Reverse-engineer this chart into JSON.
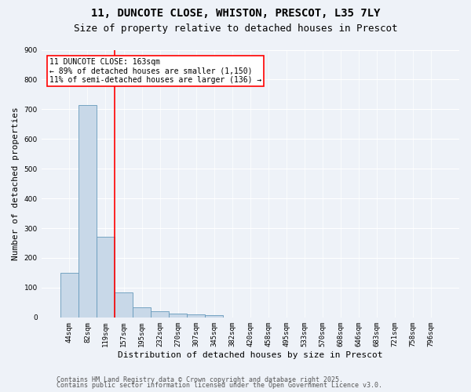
{
  "title_line1": "11, DUNCOTE CLOSE, WHISTON, PRESCOT, L35 7LY",
  "title_line2": "Size of property relative to detached houses in Prescot",
  "xlabel": "Distribution of detached houses by size in Prescot",
  "ylabel": "Number of detached properties",
  "categories": [
    "44sqm",
    "82sqm",
    "119sqm",
    "157sqm",
    "195sqm",
    "232sqm",
    "270sqm",
    "307sqm",
    "345sqm",
    "382sqm",
    "420sqm",
    "458sqm",
    "495sqm",
    "533sqm",
    "570sqm",
    "608sqm",
    "646sqm",
    "683sqm",
    "721sqm",
    "758sqm",
    "796sqm"
  ],
  "values": [
    150,
    715,
    270,
    85,
    35,
    20,
    12,
    10,
    8,
    0,
    0,
    0,
    0,
    0,
    0,
    0,
    0,
    0,
    0,
    0,
    0
  ],
  "bar_color": "#c8d8e8",
  "bar_edge_color": "#6699bb",
  "vline_color": "red",
  "vline_x": 2.5,
  "annotation_text": "11 DUNCOTE CLOSE: 163sqm\n← 89% of detached houses are smaller (1,150)\n11% of semi-detached houses are larger (136) →",
  "ylim": [
    0,
    900
  ],
  "yticks": [
    0,
    100,
    200,
    300,
    400,
    500,
    600,
    700,
    800,
    900
  ],
  "footer_line1": "Contains HM Land Registry data © Crown copyright and database right 2025.",
  "footer_line2": "Contains public sector information licensed under the Open Government Licence v3.0.",
  "bg_color": "#eef2f8",
  "plot_bg_color": "#eef2f8",
  "grid_color": "#ffffff",
  "title_fontsize": 10,
  "subtitle_fontsize": 9,
  "axis_label_fontsize": 8,
  "tick_fontsize": 6.5,
  "annotation_fontsize": 7,
  "footer_fontsize": 6
}
